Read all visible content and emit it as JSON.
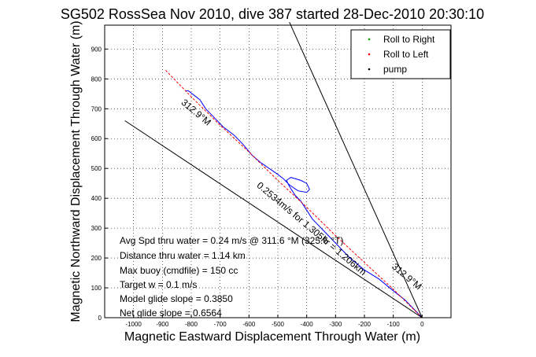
{
  "chart_data": {
    "type": "line",
    "title": "SG502 RossSea Nov 2010, dive 387 started 28-Dec-2010 20:30:10",
    "xlabel": "Magnetic Eastward Displacement Through Water (m)",
    "ylabel": "Magnetic Northward Displacement Through Water (m)",
    "xlim": [
      -1100,
      100
    ],
    "ylim": [
      0,
      980
    ],
    "xticks": [
      -1000,
      -900,
      -800,
      -700,
      -600,
      -500,
      -400,
      -300,
      -200,
      -100,
      0
    ],
    "yticks": [
      0,
      100,
      200,
      300,
      400,
      500,
      600,
      700,
      800,
      900
    ],
    "grid": true,
    "legend": {
      "placement": "top-right",
      "entries": [
        {
          "label": "Roll to Right",
          "color": "#00aa00",
          "marker": "."
        },
        {
          "label": "Roll to Left",
          "color": "#ff0000",
          "marker": "."
        },
        {
          "label": "pump",
          "color": "#000000",
          "marker": "."
        }
      ]
    },
    "series": [
      {
        "color": "#0000ff",
        "points": [
          [
            0,
            0
          ],
          [
            -20,
            20
          ],
          [
            -60,
            60
          ],
          [
            -100,
            90
          ],
          [
            -150,
            130
          ],
          [
            -200,
            160
          ],
          [
            -250,
            200
          ],
          [
            -300,
            250
          ],
          [
            -340,
            290
          ],
          [
            -380,
            330
          ],
          [
            -400,
            360
          ],
          [
            -420,
            390
          ],
          [
            -440,
            410
          ],
          [
            -460,
            440
          ],
          [
            -470,
            460
          ],
          [
            -455,
            470
          ],
          [
            -420,
            460
          ],
          [
            -400,
            450
          ],
          [
            -390,
            430
          ],
          [
            -400,
            420
          ],
          [
            -430,
            425
          ],
          [
            -460,
            445
          ],
          [
            -480,
            465
          ],
          [
            -500,
            480
          ],
          [
            -530,
            500
          ],
          [
            -560,
            520
          ],
          [
            -590,
            545
          ],
          [
            -620,
            580
          ],
          [
            -650,
            610
          ],
          [
            -690,
            640
          ],
          [
            -720,
            670
          ],
          [
            -750,
            700
          ],
          [
            -770,
            730
          ],
          [
            -790,
            745
          ],
          [
            -810,
            760
          ],
          [
            -820,
            760
          ]
        ]
      },
      {
        "color": "#ff0000",
        "style": "dashed",
        "points": [
          [
            0,
            0
          ],
          [
            -100,
            95
          ],
          [
            -200,
            185
          ],
          [
            -300,
            275
          ],
          [
            -400,
            370
          ],
          [
            -500,
            460
          ],
          [
            -600,
            555
          ],
          [
            -700,
            645
          ],
          [
            -800,
            740
          ],
          [
            -850,
            790
          ],
          [
            -890,
            830
          ]
        ]
      },
      {
        "color": "#000000",
        "points": [
          [
            0,
            0
          ],
          [
            -1030,
            660
          ]
        ]
      },
      {
        "color": "#000000",
        "points": [
          [
            0,
            0
          ],
          [
            -460,
            990
          ]
        ]
      }
    ],
    "annotations": [
      {
        "text": "312.9°M",
        "x": -790,
        "y": 680,
        "rotation": 40
      },
      {
        "text": "0.2534m/s for 1.305hr = 1.206km",
        "x": -390,
        "y": 290,
        "rotation": 40
      },
      {
        "text": "312.9°M",
        "x": -60,
        "y": 130,
        "rotation": 40
      }
    ],
    "info_lines": [
      "Avg Spd thru water =  0.24 m/s @ 311.6 °M (325.6 °T)",
      "Distance thru water =  1.14 km",
      "Max buoy (cmdfile) = 150 cc",
      "Target w = 0.1 m/s",
      "Model glide slope = 0.3850",
      "Net glide slope = 0.6564"
    ]
  }
}
